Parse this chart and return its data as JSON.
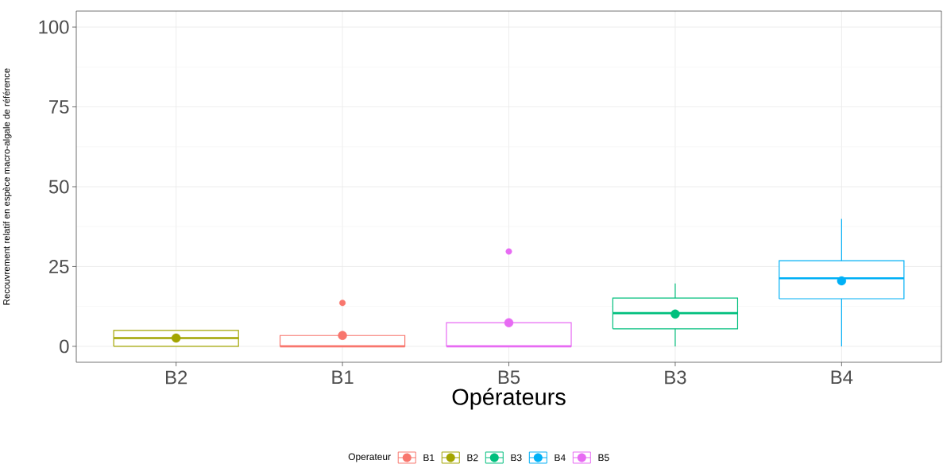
{
  "chart_data": {
    "type": "box",
    "xlabel": "Opérateurs",
    "ylabel": "Recouvrement relatif en espèce macro-algale de référence",
    "legend_title": "Operateur",
    "categories": [
      "B2",
      "B1",
      "B5",
      "B3",
      "B4"
    ],
    "series": [
      {
        "name": "B1",
        "color": "#f8766d",
        "boxes": [
          null,
          {
            "low": 0,
            "q1": 0,
            "median": 0,
            "q3": 3.4,
            "high": 3.4,
            "mean": 3.4,
            "outliers": [
              13.6
            ]
          },
          null,
          null,
          null
        ]
      },
      {
        "name": "B2",
        "color": "#a3a500",
        "boxes": [
          {
            "low": 0,
            "q1": 0,
            "median": 2.6,
            "q3": 5,
            "high": 5,
            "mean": 2.6
          },
          null,
          null,
          null,
          null
        ]
      },
      {
        "name": "B3",
        "color": "#00bf7d",
        "boxes": [
          null,
          null,
          null,
          {
            "low": 0,
            "q1": 5.5,
            "median": 10.4,
            "q3": 15.1,
            "high": 19.7,
            "mean": 10.1
          },
          null
        ]
      },
      {
        "name": "B4",
        "color": "#00b0f6",
        "boxes": [
          null,
          null,
          null,
          null,
          {
            "low": 0,
            "q1": 14.9,
            "median": 21.3,
            "q3": 26.8,
            "high": 39.9,
            "mean": 20.5
          }
        ]
      },
      {
        "name": "B5",
        "color": "#e76bf3",
        "boxes": [
          null,
          null,
          {
            "low": 0,
            "q1": 0,
            "median": 0,
            "q3": 7.4,
            "high": 7.4,
            "mean": 7.4,
            "outliers": [
              29.7
            ]
          },
          null,
          null
        ]
      }
    ],
    "ylim": [
      -5,
      105
    ],
    "yticks": [
      0,
      25,
      50,
      75,
      100
    ],
    "grid": true,
    "legend": "bottom"
  }
}
